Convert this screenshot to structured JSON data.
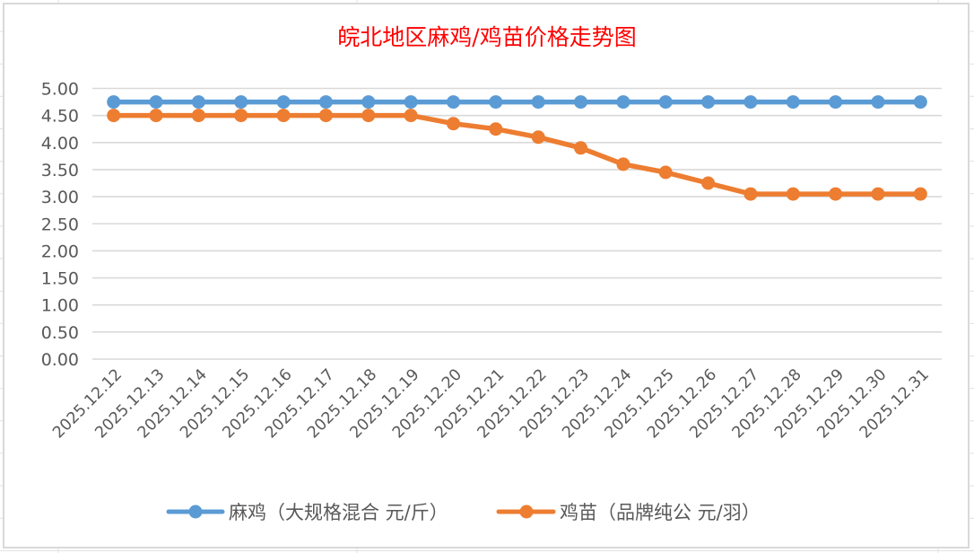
{
  "chart_data": {
    "type": "line",
    "title": "皖北地区麻鸡/鸡苗价格走势图",
    "xlabel": "",
    "ylabel": "",
    "ylim": [
      0,
      5
    ],
    "ytick_step": 0.5,
    "ytick_labels": [
      "0.00",
      "0.50",
      "1.00",
      "1.50",
      "2.00",
      "2.50",
      "3.00",
      "3.50",
      "4.00",
      "4.50",
      "5.00"
    ],
    "grid": true,
    "legend_position": "bottom",
    "categories": [
      "2025.12.12",
      "2025.12.13",
      "2025.12.14",
      "2025.12.15",
      "2025.12.16",
      "2025.12.17",
      "2025.12.18",
      "2025.12.19",
      "2025.12.20",
      "2025.12.21",
      "2025.12.22",
      "2025.12.23",
      "2025.12.24",
      "2025.12.25",
      "2025.12.26",
      "2025.12.27",
      "2025.12.28",
      "2025.12.29",
      "2025.12.30",
      "2025.12.31"
    ],
    "series": [
      {
        "name": "麻鸡（大规格混合 元/斤）",
        "color": "#5b9bd5",
        "values": [
          4.75,
          4.75,
          4.75,
          4.75,
          4.75,
          4.75,
          4.75,
          4.75,
          4.75,
          4.75,
          4.75,
          4.75,
          4.75,
          4.75,
          4.75,
          4.75,
          4.75,
          4.75,
          4.75,
          4.75
        ]
      },
      {
        "name": "鸡苗（品牌纯公 元/羽）",
        "color": "#ed7d31",
        "values": [
          4.5,
          4.5,
          4.5,
          4.5,
          4.5,
          4.5,
          4.5,
          4.5,
          4.35,
          4.25,
          4.1,
          3.9,
          3.6,
          3.45,
          3.25,
          3.05,
          3.05,
          3.05,
          3.05,
          3.05
        ]
      }
    ]
  },
  "colors": {
    "title": "#ff0000",
    "gridline": "#d9d9d9",
    "axis_text": "#595959",
    "frame_border": "#d9d9d9",
    "sheet_gridline": "#e1e1e1"
  }
}
